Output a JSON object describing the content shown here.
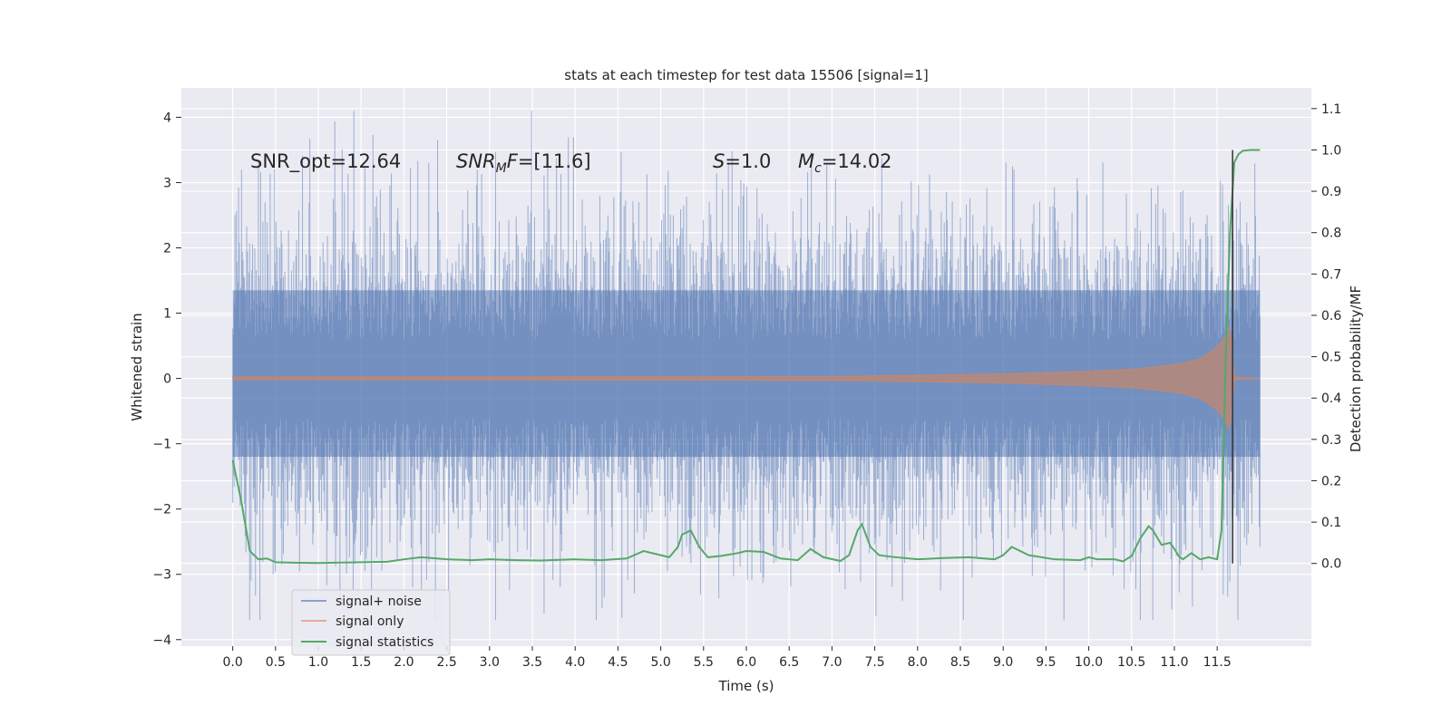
{
  "chart_data": {
    "type": "line",
    "title": "stats at each timestep for test data 15506 [signal=1]",
    "xlabel": "Time (s)",
    "ylabel": "Whitened strain",
    "y2label": "Detection probability/MF",
    "xlim": [
      -0.6,
      12.6
    ],
    "ylim": [
      -4.1,
      4.45
    ],
    "y2lim": [
      -0.2,
      1.15
    ],
    "xticks": [
      0.0,
      0.5,
      1.0,
      1.5,
      2.0,
      2.5,
      3.0,
      3.5,
      4.0,
      4.5,
      5.0,
      5.5,
      6.0,
      6.5,
      7.0,
      7.5,
      8.0,
      8.5,
      9.0,
      9.5,
      10.0,
      10.5,
      11.0,
      11.5
    ],
    "xtick_labels": [
      "0.0",
      "0.5",
      "1.0",
      "1.5",
      "2.0",
      "2.5",
      "3.0",
      "3.5",
      "4.0",
      "4.5",
      "5.0",
      "5.5",
      "6.0",
      "6.5",
      "7.0",
      "7.5",
      "8.0",
      "8.5",
      "9.0",
      "9.5",
      "10.0",
      "10.5",
      "11.0",
      "11.5"
    ],
    "yticks": [
      4,
      3,
      2,
      1,
      0,
      -1,
      -2,
      -3,
      -4
    ],
    "ytick_labels": [
      "4",
      "3",
      "2",
      "1",
      "0",
      "−1",
      "−2",
      "−3",
      "−4"
    ],
    "y2ticks": [
      1.1,
      1.0,
      0.9,
      0.8,
      0.7,
      0.6,
      0.5,
      0.4,
      0.3,
      0.2,
      0.1,
      0.0
    ],
    "y2tick_labels": [
      "1.1",
      "1.0",
      "0.9",
      "0.8",
      "0.7",
      "0.6",
      "0.5",
      "0.4",
      "0.3",
      "0.2",
      "0.1",
      "0.0"
    ],
    "grid": true,
    "legend_position": "lower-left",
    "series": [
      {
        "name": "signal+ noise",
        "color": "#4c72b0",
        "axis": "left",
        "duration": 12.0,
        "approx_std": 0.7,
        "range": [
          -3.7,
          4.1
        ]
      },
      {
        "name": "signal only",
        "color": "#dd8452",
        "axis": "left",
        "envelope": {
          "t": [
            0.0,
            7.0,
            8.0,
            9.0,
            10.0,
            10.5,
            11.0,
            11.3,
            11.5,
            11.6,
            11.65,
            11.7,
            12.0
          ],
          "amp": [
            0.02,
            0.03,
            0.05,
            0.07,
            0.11,
            0.14,
            0.21,
            0.3,
            0.48,
            0.65,
            0.8,
            0.02,
            0.0
          ]
        }
      },
      {
        "name": "signal statistics",
        "color": "#55a868",
        "axis": "right",
        "x": [
          0.0,
          0.1,
          0.2,
          0.3,
          0.4,
          0.5,
          0.7,
          1.0,
          1.5,
          1.8,
          2.0,
          2.2,
          2.5,
          2.8,
          3.0,
          3.3,
          3.6,
          4.0,
          4.3,
          4.6,
          4.8,
          5.0,
          5.1,
          5.2,
          5.25,
          5.35,
          5.45,
          5.55,
          5.7,
          5.9,
          6.0,
          6.2,
          6.4,
          6.6,
          6.75,
          6.9,
          7.1,
          7.2,
          7.3,
          7.35,
          7.45,
          7.55,
          7.7,
          8.0,
          8.3,
          8.6,
          8.9,
          9.0,
          9.1,
          9.3,
          9.6,
          9.9,
          10.0,
          10.1,
          10.3,
          10.4,
          10.5,
          10.6,
          10.7,
          10.75,
          10.85,
          10.95,
          11.0,
          11.05,
          11.1,
          11.2,
          11.3,
          11.4,
          11.5,
          11.55,
          11.6,
          11.65,
          11.7,
          11.75,
          11.8,
          11.9,
          12.0
        ],
        "y": [
          0.25,
          0.15,
          0.03,
          0.01,
          0.012,
          0.003,
          0.002,
          0.001,
          0.003,
          0.004,
          0.01,
          0.015,
          0.01,
          0.008,
          0.01,
          0.008,
          0.007,
          0.01,
          0.008,
          0.012,
          0.03,
          0.02,
          0.015,
          0.04,
          0.07,
          0.08,
          0.04,
          0.015,
          0.018,
          0.025,
          0.03,
          0.028,
          0.012,
          0.008,
          0.035,
          0.015,
          0.006,
          0.02,
          0.08,
          0.095,
          0.04,
          0.02,
          0.016,
          0.01,
          0.013,
          0.015,
          0.01,
          0.02,
          0.04,
          0.02,
          0.01,
          0.008,
          0.015,
          0.01,
          0.01,
          0.005,
          0.018,
          0.06,
          0.09,
          0.08,
          0.045,
          0.05,
          0.035,
          0.018,
          0.01,
          0.025,
          0.01,
          0.015,
          0.01,
          0.08,
          0.5,
          0.8,
          0.97,
          0.99,
          0.998,
          1.0,
          1.0
        ]
      }
    ],
    "cursor_x": 11.68,
    "annotations": {
      "snr_opt": "SNR_opt=12.64",
      "snr_mf_italic": "SNR",
      "snr_mf_sub": "M",
      "snr_mf_rest": "F",
      "snr_mf_value": "=[11.6]",
      "s_label": "S",
      "s_value": "=1.0",
      "mc_label": "M",
      "mc_sub": "c",
      "mc_value": "=14.02"
    }
  }
}
